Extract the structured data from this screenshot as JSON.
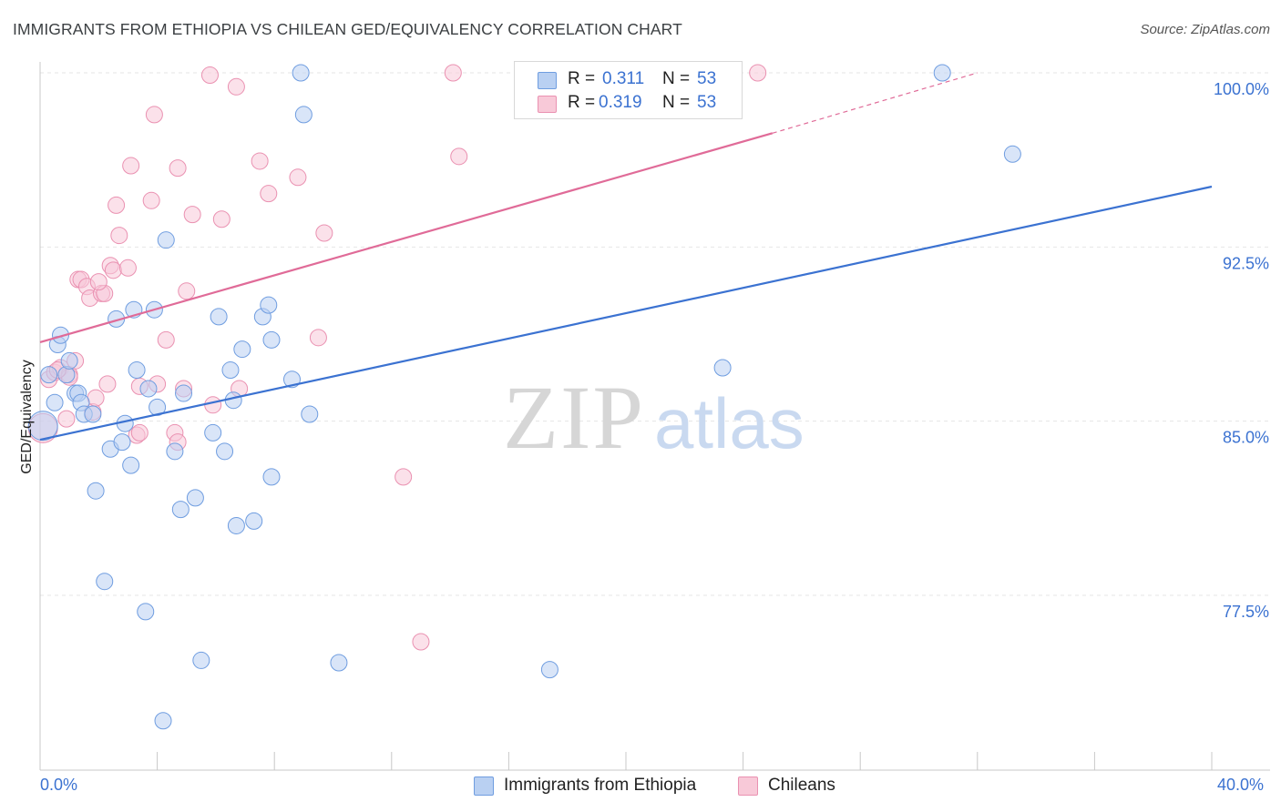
{
  "header": {
    "title": "IMMIGRANTS FROM ETHIOPIA VS CHILEAN GED/EQUIVALENCY CORRELATION CHART",
    "source": "Source: ZipAtlas.com"
  },
  "legend": {
    "rows": [
      {
        "r_label": "R =",
        "r_value": "0.311",
        "n_label": "N =",
        "n_value": "53"
      },
      {
        "r_label": "R =",
        "r_value": "0.319",
        "n_label": "N =",
        "n_value": "53"
      }
    ]
  },
  "bottom_legend": [
    "Immigrants from Ethiopia",
    "Chileans"
  ],
  "x_tick_labels": {
    "left": "0.0%",
    "right": "40.0%"
  },
  "colors": {
    "blue": "#3b72d1",
    "blue_fill": "#b9d0f2",
    "blue_stroke": "#6f9de0",
    "pink": "#e06b98",
    "pink_fill": "#f8c9d8",
    "pink_stroke": "#ea91b1",
    "grid": "#e6e6e6",
    "watermark": "#d5d5d5"
  },
  "watermark": {
    "part1": "ZIP",
    "part2": "atlas"
  },
  "chart_data": {
    "type": "scatter",
    "title": "IMMIGRANTS FROM ETHIOPIA VS CHILEAN GED/EQUIVALENCY CORRELATION CHART",
    "xlabel": "",
    "ylabel": "GED/Equivalency",
    "xlim": [
      0,
      40
    ],
    "ylim": [
      71,
      101
    ],
    "y_ticks": [
      {
        "value": 100,
        "label": "100.0%"
      },
      {
        "value": 92.5,
        "label": "92.5%"
      },
      {
        "value": 85,
        "label": "85.0%"
      },
      {
        "value": 77.5,
        "label": "77.5%"
      }
    ],
    "grid": true,
    "legend_position": "top-center",
    "series": [
      {
        "name": "Immigrants from Ethiopia",
        "color": "#6f9de0",
        "trend": {
          "x": [
            0,
            40
          ],
          "y": [
            84.2,
            95.1
          ]
        },
        "points": [
          [
            0.1,
            84.8
          ],
          [
            0.3,
            87.0
          ],
          [
            0.5,
            85.8
          ],
          [
            0.6,
            88.3
          ],
          [
            0.7,
            88.7
          ],
          [
            0.9,
            87.0
          ],
          [
            1.0,
            87.6
          ],
          [
            1.2,
            86.2
          ],
          [
            1.3,
            86.2
          ],
          [
            1.4,
            85.8
          ],
          [
            1.5,
            85.3
          ],
          [
            1.8,
            85.3
          ],
          [
            1.9,
            82.0
          ],
          [
            2.2,
            78.1
          ],
          [
            2.4,
            83.8
          ],
          [
            2.6,
            89.4
          ],
          [
            2.8,
            84.1
          ],
          [
            2.9,
            84.9
          ],
          [
            3.1,
            83.1
          ],
          [
            3.2,
            89.8
          ],
          [
            3.3,
            87.2
          ],
          [
            3.6,
            76.8
          ],
          [
            3.7,
            86.4
          ],
          [
            3.9,
            89.8
          ],
          [
            4.0,
            85.6
          ],
          [
            4.2,
            72.1
          ],
          [
            4.3,
            92.8
          ],
          [
            4.6,
            83.7
          ],
          [
            4.8,
            81.2
          ],
          [
            4.9,
            86.2
          ],
          [
            5.3,
            81.7
          ],
          [
            5.5,
            74.7
          ],
          [
            5.9,
            84.5
          ],
          [
            6.1,
            89.5
          ],
          [
            6.3,
            83.7
          ],
          [
            6.5,
            87.2
          ],
          [
            6.6,
            85.9
          ],
          [
            6.7,
            80.5
          ],
          [
            6.9,
            88.1
          ],
          [
            7.3,
            80.7
          ],
          [
            7.6,
            89.5
          ],
          [
            7.8,
            90.0
          ],
          [
            7.9,
            88.5
          ],
          [
            7.9,
            82.6
          ],
          [
            8.6,
            86.8
          ],
          [
            8.9,
            100.0
          ],
          [
            9.0,
            98.2
          ],
          [
            9.2,
            85.3
          ],
          [
            10.2,
            74.6
          ],
          [
            17.4,
            74.3
          ],
          [
            23.3,
            87.3
          ],
          [
            30.8,
            100.0
          ],
          [
            33.2,
            96.5
          ]
        ]
      },
      {
        "name": "Chileans",
        "color": "#ea91b1",
        "trend": {
          "x": [
            0,
            25
          ],
          "y": [
            88.4,
            97.4
          ]
        },
        "trend_extension": {
          "x": [
            25,
            32
          ],
          "y": [
            97.4,
            100.0
          ]
        },
        "points": [
          [
            0.1,
            84.7
          ],
          [
            0.3,
            86.8
          ],
          [
            0.5,
            87.1
          ],
          [
            0.7,
            87.3
          ],
          [
            0.9,
            85.1
          ],
          [
            1.0,
            87.0
          ],
          [
            1.2,
            87.6
          ],
          [
            1.3,
            91.1
          ],
          [
            1.4,
            91.1
          ],
          [
            1.6,
            90.8
          ],
          [
            1.7,
            90.3
          ],
          [
            1.8,
            85.4
          ],
          [
            1.9,
            86.0
          ],
          [
            2.1,
            90.5
          ],
          [
            2.2,
            90.5
          ],
          [
            2.3,
            86.6
          ],
          [
            2.4,
            91.7
          ],
          [
            2.5,
            91.5
          ],
          [
            2.6,
            94.3
          ],
          [
            2.7,
            93.0
          ],
          [
            3.0,
            91.6
          ],
          [
            3.1,
            96.0
          ],
          [
            3.3,
            84.4
          ],
          [
            3.4,
            86.5
          ],
          [
            3.8,
            94.5
          ],
          [
            3.9,
            98.2
          ],
          [
            4.0,
            86.6
          ],
          [
            4.3,
            88.5
          ],
          [
            4.6,
            84.5
          ],
          [
            4.7,
            84.1
          ],
          [
            4.7,
            95.9
          ],
          [
            4.9,
            86.4
          ],
          [
            5.0,
            90.6
          ],
          [
            5.2,
            93.9
          ],
          [
            5.8,
            99.9
          ],
          [
            5.9,
            85.7
          ],
          [
            6.2,
            93.7
          ],
          [
            6.7,
            99.4
          ],
          [
            6.8,
            86.4
          ],
          [
            7.5,
            96.2
          ],
          [
            7.8,
            94.8
          ],
          [
            8.8,
            95.5
          ],
          [
            9.5,
            88.6
          ],
          [
            9.7,
            93.1
          ],
          [
            12.4,
            82.6
          ],
          [
            13.0,
            75.5
          ],
          [
            14.1,
            100.0
          ],
          [
            14.3,
            96.4
          ],
          [
            24.5,
            100.0
          ],
          [
            1.0,
            86.9
          ],
          [
            2.0,
            91.0
          ],
          [
            3.4,
            84.5
          ],
          [
            0.6,
            87.2
          ]
        ]
      }
    ]
  }
}
